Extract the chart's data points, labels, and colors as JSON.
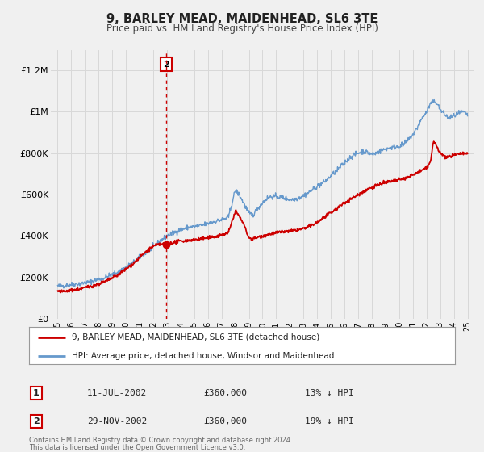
{
  "title": "9, BARLEY MEAD, MAIDENHEAD, SL6 3TE",
  "subtitle": "Price paid vs. HM Land Registry's House Price Index (HPI)",
  "legend_entry1": "9, BARLEY MEAD, MAIDENHEAD, SL6 3TE (detached house)",
  "legend_entry2": "HPI: Average price, detached house, Windsor and Maidenhead",
  "annotation1_label": "1",
  "annotation1_date": "11-JUL-2002",
  "annotation1_price": "£360,000",
  "annotation1_hpi": "13% ↓ HPI",
  "annotation2_label": "2",
  "annotation2_date": "29-NOV-2002",
  "annotation2_price": "£360,000",
  "annotation2_hpi": "19% ↓ HPI",
  "footer1": "Contains HM Land Registry data © Crown copyright and database right 2024.",
  "footer2": "This data is licensed under the Open Government Licence v3.0.",
  "red_color": "#cc0000",
  "blue_color": "#6699cc",
  "bg_color": "#f0f0f0",
  "vline_x": 2002.92,
  "marker_x": 2002.92,
  "marker_y": 360000,
  "ylim_max": 1300000,
  "ylim_min": 0,
  "xlim_min": 1994.5,
  "xlim_max": 2025.5,
  "yticks": [
    0,
    200000,
    400000,
    600000,
    800000,
    1000000,
    1200000
  ],
  "ytick_labels": [
    "£0",
    "£200K",
    "£400K",
    "£600K",
    "£800K",
    "£1M",
    "£1.2M"
  ],
  "xtick_years": [
    1995,
    1996,
    1997,
    1998,
    1999,
    2000,
    2001,
    2002,
    2003,
    2004,
    2005,
    2006,
    2007,
    2008,
    2009,
    2010,
    2011,
    2012,
    2013,
    2014,
    2015,
    2016,
    2017,
    2018,
    2019,
    2020,
    2021,
    2022,
    2023,
    2024,
    2025
  ]
}
